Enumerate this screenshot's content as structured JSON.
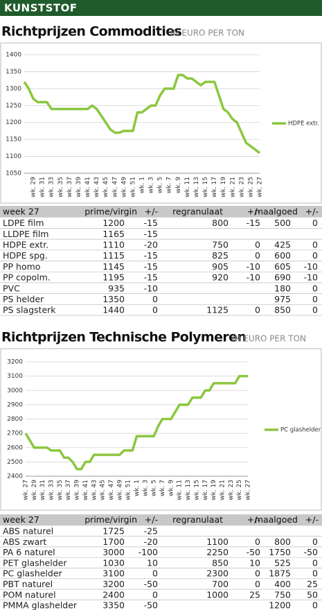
{
  "header": "KUNSTSTOF",
  "sections": [
    {
      "title": "Richtprijzen Commodities",
      "unit": "IN EURO PER TON"
    },
    {
      "title": "Richtprijzen Technische Polymeren",
      "unit": "IN EURO PER TON"
    }
  ],
  "chart_data": [
    {
      "type": "line",
      "categories": [
        null,
        null,
        "wk. 29",
        null,
        "wk. 31",
        null,
        "wk. 33",
        null,
        "wk. 35",
        null,
        "wk. 37",
        null,
        "wk. 39",
        null,
        "wk. 41",
        null,
        "wk. 43",
        null,
        "wk. 45",
        null,
        "wk. 47",
        null,
        "wk. 49",
        null,
        "wk. 51",
        null,
        "wk. 1",
        null,
        "wk. 3",
        null,
        "wk. 5",
        null,
        "wk. 7",
        null,
        "wk. 9",
        null,
        "wk. 11",
        null,
        "wk. 13",
        null,
        "wk. 15",
        null,
        "wk. 17",
        null,
        "wk. 19",
        null,
        "wk. 21",
        null,
        "wk. 23",
        null,
        "wk. 25",
        null,
        "wk. 27"
      ],
      "series": [
        {
          "name": "HDPE extr.",
          "color": "#8cc63f",
          "values": [
            1320,
            1300,
            1270,
            1260,
            1260,
            1260,
            1240,
            1240,
            1240,
            1240,
            1240,
            1240,
            1240,
            1240,
            1240,
            1250,
            1240,
            1220,
            1200,
            1180,
            1170,
            1170,
            1175,
            1175,
            1175,
            1230,
            1230,
            1240,
            1250,
            1250,
            1280,
            1300,
            1300,
            1300,
            1340,
            1340,
            1330,
            1330,
            1320,
            1310,
            1320,
            1320,
            1320,
            1280,
            1240,
            1230,
            1210,
            1200,
            1170,
            1140,
            1130,
            1120,
            1110
          ]
        }
      ],
      "ylim": [
        1050,
        1400
      ],
      "yticks": [
        1050,
        1100,
        1150,
        1200,
        1250,
        1300,
        1350,
        1400
      ],
      "grid": true,
      "legend": "right"
    },
    {
      "type": "line",
      "categories": [
        "wk. 27",
        null,
        "wk. 29",
        null,
        "wk. 31",
        null,
        "wk. 33",
        null,
        "wk. 35",
        null,
        "wk. 37",
        null,
        "wk. 39",
        null,
        "wk. 41",
        null,
        "wk. 43",
        null,
        "wk. 45",
        null,
        "wk. 47",
        null,
        "wk. 49",
        null,
        "wk. 51",
        null,
        "wk. 1",
        null,
        "wk. 3",
        null,
        "wk. 5",
        null,
        "wk. 7",
        null,
        "wk. 9",
        null,
        "wk. 11",
        null,
        "wk. 13",
        null,
        "wk. 15",
        null,
        "wk. 17",
        null,
        "wk. 19",
        null,
        "wk. 21",
        null,
        "wk. 23",
        null,
        "wk. 25",
        null,
        "wk. 27"
      ],
      "series": [
        {
          "name": "PC glashelder",
          "color": "#8cc63f",
          "values": [
            2700,
            2650,
            2600,
            2600,
            2600,
            2600,
            2580,
            2580,
            2580,
            2530,
            2530,
            2500,
            2450,
            2450,
            2500,
            2500,
            2550,
            2550,
            2550,
            2550,
            2550,
            2550,
            2550,
            2580,
            2580,
            2580,
            2680,
            2680,
            2680,
            2680,
            2680,
            2750,
            2800,
            2800,
            2800,
            2850,
            2900,
            2900,
            2900,
            2950,
            2950,
            2950,
            3000,
            3000,
            3050,
            3050,
            3050,
            3050,
            3050,
            3050,
            3100,
            3100,
            3100
          ]
        }
      ],
      "ylim": [
        2400,
        3200
      ],
      "yticks": [
        2400,
        2500,
        2600,
        2700,
        2800,
        2900,
        3000,
        3100,
        3200
      ],
      "grid": true,
      "legend": "right"
    }
  ],
  "tables": [
    {
      "columns": [
        "week 27",
        "prime/virgin",
        "+/-",
        "regranulaat",
        "+/-",
        "maalgoed",
        "+/-"
      ],
      "rows": [
        [
          "LDPE film",
          1200,
          -15,
          800,
          -15,
          500,
          0
        ],
        [
          "LLDPE film",
          1165,
          -15,
          null,
          null,
          null,
          null
        ],
        [
          "HDPE extr.",
          1110,
          -20,
          750,
          0,
          425,
          0
        ],
        [
          "HDPE spg.",
          1115,
          -15,
          825,
          0,
          600,
          0
        ],
        [
          "PP homo",
          1145,
          -15,
          905,
          -10,
          605,
          -10
        ],
        [
          "PP copolm.",
          1195,
          -15,
          920,
          -10,
          690,
          -10
        ],
        [
          "PVC",
          935,
          -10,
          null,
          null,
          180,
          0
        ],
        [
          "PS helder",
          1350,
          0,
          null,
          null,
          975,
          0
        ],
        [
          "PS slagsterk",
          1440,
          0,
          1125,
          0,
          850,
          0
        ]
      ]
    },
    {
      "columns": [
        "week 27",
        "prime/virgin",
        "+/-",
        "regranulaat",
        "+/-",
        "maalgoed",
        "+/-"
      ],
      "rows": [
        [
          "ABS naturel",
          1725,
          -25,
          null,
          null,
          null,
          null
        ],
        [
          "ABS zwart",
          1700,
          -20,
          1100,
          0,
          800,
          0
        ],
        [
          "PA 6 naturel",
          3000,
          -100,
          2250,
          -50,
          1750,
          -50
        ],
        [
          "PET glashelder",
          1030,
          10,
          850,
          10,
          525,
          0
        ],
        [
          "PC glashelder",
          3100,
          0,
          2300,
          0,
          1875,
          0
        ],
        [
          "PBT naturel",
          3200,
          -50,
          700,
          0,
          400,
          25
        ],
        [
          "POM naturel",
          2400,
          0,
          1000,
          25,
          750,
          50
        ],
        [
          "PMMA glashelder",
          3350,
          -50,
          null,
          null,
          1200,
          0
        ]
      ]
    }
  ]
}
